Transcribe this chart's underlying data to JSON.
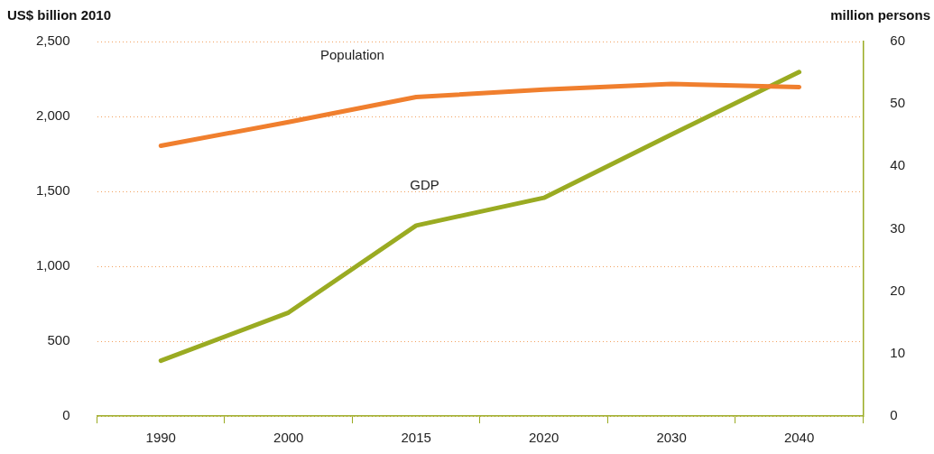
{
  "chart_data": {
    "type": "line",
    "ylabel": "US$ billion 2010",
    "y2label": "million persons",
    "categories": [
      "1990",
      "2000",
      "2015",
      "2020",
      "2030",
      "2040"
    ],
    "series": [
      {
        "name": "Population",
        "color": "#f07f2e",
        "axis": "y2",
        "values": [
          43.3,
          47.1,
          51.1,
          52.3,
          53.2,
          52.7
        ]
      },
      {
        "name": "GDP",
        "color": "#9aab22",
        "values": [
          370,
          691,
          1272,
          1457,
          1880,
          2296
        ]
      }
    ],
    "ylim": [
      0,
      2500
    ],
    "yticks": [
      {
        "value": 0,
        "label": "0"
      },
      {
        "value": 500,
        "label": "500"
      },
      {
        "value": 1000,
        "label": "1,000"
      },
      {
        "value": 1500,
        "label": "1,500"
      },
      {
        "value": 2000,
        "label": "2,000"
      },
      {
        "value": 2500,
        "label": "2,500"
      }
    ],
    "y2lim": [
      0,
      60
    ],
    "y2ticks": [
      0,
      10,
      20,
      30,
      40,
      50,
      60
    ],
    "grid": "y",
    "legend": false,
    "marker": "none",
    "line_style": "solid"
  }
}
